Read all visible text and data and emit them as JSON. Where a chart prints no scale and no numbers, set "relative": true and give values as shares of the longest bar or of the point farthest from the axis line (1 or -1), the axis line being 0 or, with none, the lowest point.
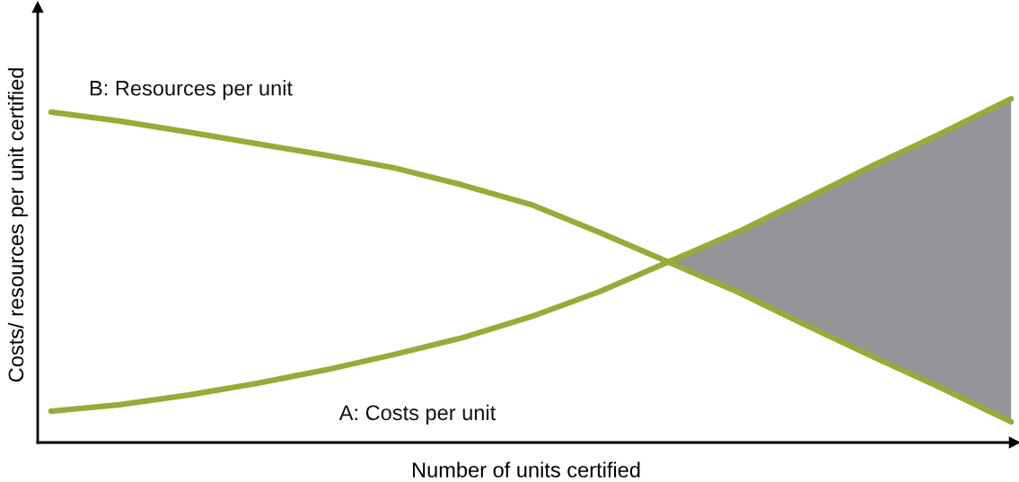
{
  "chart_data": {
    "type": "line",
    "relative": true,
    "xlabel": "Number of units certified",
    "ylabel": "Costs/ resources per unit certified",
    "categories": [
      null,
      null,
      null,
      null,
      null,
      null,
      null,
      null,
      null,
      null,
      null,
      null,
      null,
      null,
      null
    ],
    "legend": false,
    "grid": false,
    "marker": "none",
    "line_style": "solid",
    "series": [
      {
        "name": "A: Costs per unit",
        "color": "#9aaa3a",
        "values": [
          0.091,
          0.11,
          0.138,
          0.172,
          0.211,
          0.256,
          0.305,
          0.366,
          0.439,
          0.525,
          0.611,
          0.708,
          0.807,
          0.901,
          1
        ],
        "lower": [
          null,
          null,
          null,
          null,
          null,
          null,
          null,
          null,
          null,
          0.525,
          0.439,
          0.342,
          0.248,
          0.157,
          0.06
        ],
        "upper": [
          null,
          null,
          null,
          null,
          null,
          null,
          null,
          null,
          null,
          0.525,
          0.611,
          0.708,
          0.807,
          0.901,
          1
        ]
      },
      {
        "name": "B: Resources per unit",
        "color": "#9aaa3a",
        "values": [
          0.961,
          0.935,
          0.903,
          0.869,
          0.836,
          0.799,
          0.749,
          0.692,
          0.611,
          0.525,
          0.439,
          0.342,
          0.248,
          0.157,
          0.06
        ]
      }
    ]
  }
}
